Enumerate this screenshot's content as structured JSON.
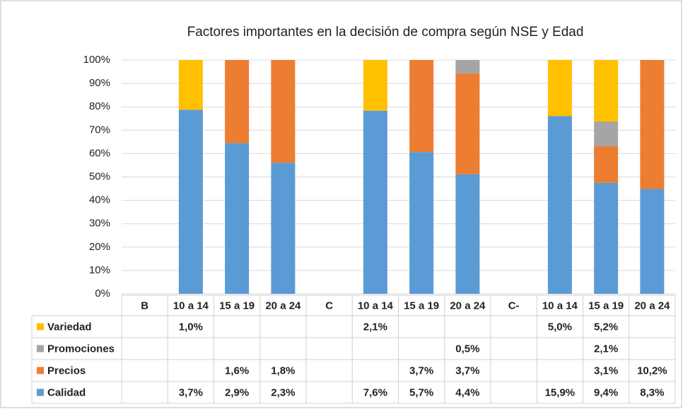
{
  "chart_data": {
    "type": "bar",
    "stacked": "percent",
    "title": "Factores importantes en la decisión de compra según NSE y Edad",
    "categories": [
      "B",
      "10 a 14",
      "15 a 19",
      "20 a 24",
      "C",
      "10 a 14",
      "15 a 19",
      "20 a 24",
      "C-",
      "10 a 14",
      "15 a 19",
      "20 a 24"
    ],
    "series": [
      {
        "name": "Variedad",
        "color": "#ffc000",
        "values": [
          null,
          1.0,
          null,
          null,
          null,
          2.1,
          null,
          null,
          null,
          5.0,
          5.2,
          null
        ],
        "value_labels": [
          null,
          "1,0%",
          null,
          null,
          null,
          "2,1%",
          null,
          null,
          null,
          "5,0%",
          "5,2%",
          null
        ]
      },
      {
        "name": "Promociones",
        "color": "#a5a5a5",
        "values": [
          null,
          null,
          null,
          null,
          null,
          null,
          null,
          0.5,
          null,
          null,
          2.1,
          null
        ],
        "value_labels": [
          null,
          null,
          null,
          null,
          null,
          null,
          null,
          "0,5%",
          null,
          null,
          "2,1%",
          null
        ]
      },
      {
        "name": "Precios",
        "color": "#ed7d31",
        "values": [
          null,
          null,
          1.6,
          1.8,
          null,
          null,
          3.7,
          3.7,
          null,
          null,
          3.1,
          10.2
        ],
        "value_labels": [
          null,
          null,
          "1,6%",
          "1,8%",
          null,
          null,
          "3,7%",
          "3,7%",
          null,
          null,
          "3,1%",
          "10,2%"
        ]
      },
      {
        "name": "Calidad",
        "color": "#5b9bd5",
        "values": [
          null,
          3.7,
          2.9,
          2.3,
          null,
          7.6,
          5.7,
          4.4,
          null,
          15.9,
          9.4,
          8.3
        ],
        "value_labels": [
          null,
          "3,7%",
          "2,9%",
          "2,3%",
          null,
          "7,6%",
          "5,7%",
          "4,4%",
          null,
          "15,9%",
          "9,4%",
          "8,3%"
        ]
      }
    ],
    "ylim": [
      0,
      100
    ],
    "yticks": [
      {
        "value": 0,
        "label": "0%"
      },
      {
        "value": 10,
        "label": "10%"
      },
      {
        "value": 20,
        "label": "20%"
      },
      {
        "value": 30,
        "label": "30%"
      },
      {
        "value": 40,
        "label": "40%"
      },
      {
        "value": 50,
        "label": "50%"
      },
      {
        "value": 60,
        "label": "60%"
      },
      {
        "value": 70,
        "label": "70%"
      },
      {
        "value": 80,
        "label": "80%"
      },
      {
        "value": 90,
        "label": "90%"
      },
      {
        "value": 100,
        "label": "100%"
      }
    ],
    "grid": true
  }
}
